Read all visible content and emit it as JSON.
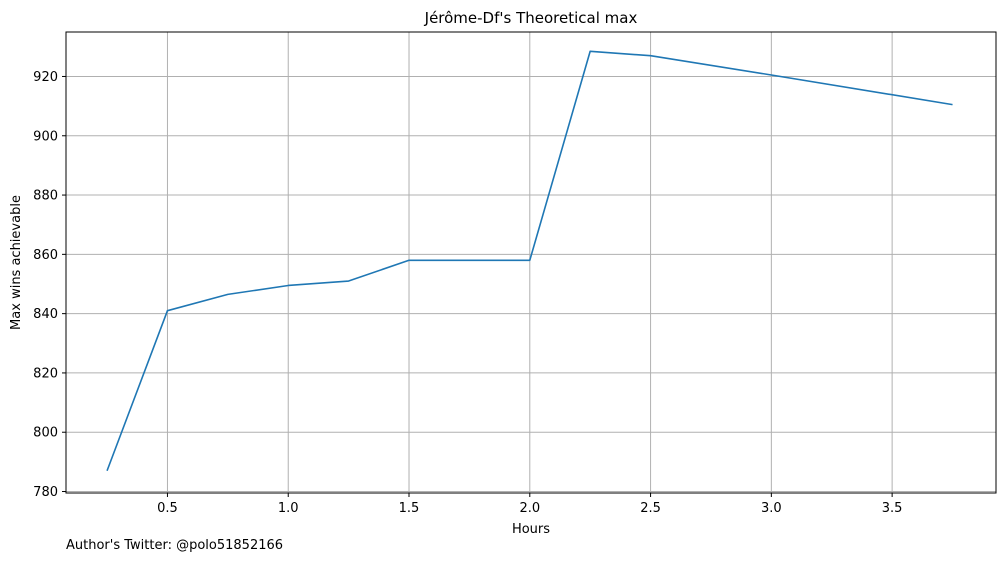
{
  "chart_data": {
    "type": "line",
    "title": "Jérôme-Df's Theoretical max",
    "xlabel": "Hours",
    "ylabel": "Max wins achievable",
    "x": [
      0.25,
      0.5,
      0.75,
      1.0,
      1.25,
      1.5,
      2.0,
      2.25,
      2.5,
      3.0,
      3.75
    ],
    "series": [
      {
        "values": [
          787,
          841,
          846.5,
          849.5,
          851,
          858,
          858,
          928.5,
          927,
          920.5,
          910.5
        ]
      }
    ],
    "xlim": [
      0.08,
      3.93
    ],
    "ylim": [
      779.5,
      935
    ],
    "xticks": [
      0.5,
      1.0,
      1.5,
      2.0,
      2.5,
      3.0,
      3.5
    ],
    "xtick_labels": [
      "0.5",
      "1.0",
      "1.5",
      "2.0",
      "2.5",
      "3.0",
      "3.5"
    ],
    "yticks": [
      780,
      800,
      820,
      840,
      860,
      880,
      900,
      920
    ],
    "ytick_labels": [
      "780",
      "800",
      "820",
      "840",
      "860",
      "880",
      "900",
      "920"
    ],
    "grid": true,
    "line_color": "#1f77b4"
  },
  "footer": {
    "credit": "Author's Twitter: @polo51852166"
  }
}
